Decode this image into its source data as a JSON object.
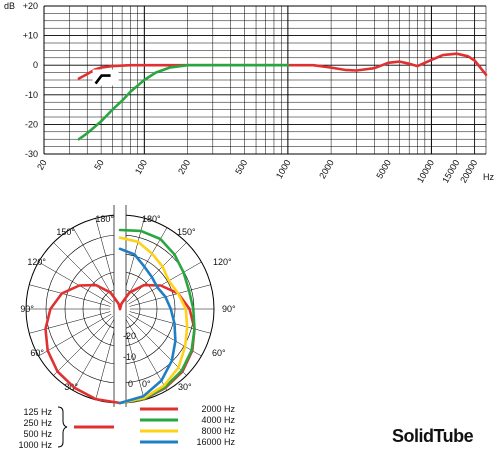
{
  "chart_data": [
    {
      "type": "line",
      "x_scale": "log",
      "xlim": [
        20,
        24000
      ],
      "ylim": [
        -30,
        20
      ],
      "x_unit": "Hz",
      "y_unit": "dB",
      "x_ticks": [
        20,
        50,
        100,
        200,
        500,
        1000,
        2000,
        5000,
        10000,
        15000,
        20000
      ],
      "x_tick_labels": [
        "20",
        "50",
        "100",
        "200",
        "500",
        "1000",
        "2000",
        "5000",
        "10000",
        "15000",
        "20000"
      ],
      "y_ticks": [
        20,
        10,
        0,
        -10,
        -20,
        -30
      ],
      "y_tick_labels": [
        "+20",
        "+10",
        "0",
        "-10",
        "-20",
        "-30"
      ],
      "grid": true,
      "series": [
        {
          "color": "#e03030",
          "x": [
            35,
            40,
            45,
            50,
            60,
            80,
            100,
            200,
            500,
            1000,
            1500,
            2000,
            2500,
            3000,
            4000,
            5000,
            6000,
            7000,
            8000,
            10000,
            12000,
            15000,
            18000,
            20000,
            24000
          ],
          "y": [
            -4.5,
            -3,
            -1.5,
            -0.8,
            -0.3,
            0,
            0,
            0,
            0,
            0,
            0,
            -0.8,
            -1.6,
            -1.8,
            -1,
            0.8,
            1.2,
            0.5,
            -0.3,
            1.8,
            3.4,
            3.9,
            3,
            1.6,
            -3.2
          ]
        },
        {
          "color": "#2aa640",
          "x": [
            35,
            40,
            50,
            60,
            70,
            80,
            100,
            120,
            150,
            200,
            500,
            1000
          ],
          "y": [
            -25,
            -23,
            -19,
            -15,
            -12,
            -9,
            -5,
            -2.5,
            -0.8,
            0,
            0,
            0
          ]
        }
      ],
      "low_cut_symbol": true
    },
    {
      "type": "polar",
      "angle_labels": [
        "180°",
        "150°",
        "120°",
        "90°",
        "60°",
        "30°",
        "0°"
      ],
      "radial_labels": [
        "-20",
        "-10",
        "0"
      ],
      "radial_range_db": [
        -25,
        0
      ],
      "left_half": [
        {
          "name": "125 Hz / 250 Hz / 500 Hz / 1000 Hz",
          "color": "#e03030",
          "angles": [
            0,
            15,
            30,
            45,
            60,
            75,
            90,
            105,
            120,
            135,
            150,
            165,
            180
          ],
          "levels_db": [
            0,
            -0.2,
            -0.8,
            -1.5,
            -2.8,
            -4.5,
            -6.5,
            -9,
            -12.5,
            -16,
            -20,
            -23.5,
            -25
          ]
        }
      ],
      "right_half": [
        {
          "name": "2000 Hz",
          "color": "#e03030",
          "angles": [
            0,
            15,
            30,
            45,
            60,
            75,
            90,
            105,
            120,
            135,
            150,
            165,
            180
          ],
          "levels_db": [
            0,
            -0.2,
            -0.8,
            -1.5,
            -2.8,
            -4.5,
            -6.5,
            -9,
            -12.5,
            -16,
            -20,
            -23.5,
            -25
          ]
        },
        {
          "name": "4000 Hz",
          "color": "#2aa640",
          "angles": [
            0,
            15,
            30,
            45,
            60,
            75,
            90,
            105,
            120,
            135,
            150,
            165,
            180
          ],
          "levels_db": [
            0,
            -0.3,
            -1,
            -1.8,
            -3,
            -4.5,
            -5.5,
            -6,
            -5.5,
            -4.5,
            -3.5,
            -3.5,
            -4
          ]
        },
        {
          "name": "8000 Hz",
          "color": "#ffd21a",
          "angles": [
            0,
            15,
            30,
            45,
            60,
            75,
            90,
            105,
            120,
            135,
            150,
            165,
            180
          ],
          "levels_db": [
            0,
            -0.5,
            -1.5,
            -3,
            -5,
            -6.5,
            -7.5,
            -9,
            -10,
            -9,
            -8,
            -6.5,
            -6
          ]
        },
        {
          "name": "16000 Hz",
          "color": "#1f7fc4",
          "angles": [
            0,
            15,
            30,
            45,
            60,
            75,
            90,
            105,
            120,
            135,
            150,
            165,
            180
          ],
          "levels_db": [
            0,
            -1,
            -3,
            -5.5,
            -8,
            -10,
            -11.5,
            -12.5,
            -13.5,
            -13,
            -12,
            -10,
            -9
          ]
        }
      ]
    }
  ],
  "legend": {
    "group_labels": [
      "125 Hz",
      "250 Hz",
      "500 Hz",
      "1000 Hz"
    ],
    "group_color": "#e03030",
    "items": [
      {
        "label": "2000 Hz",
        "color": "#e03030"
      },
      {
        "label": "4000 Hz",
        "color": "#2aa640"
      },
      {
        "label": "8000 Hz",
        "color": "#ffd21a"
      },
      {
        "label": "16000 Hz",
        "color": "#1f7fc4"
      }
    ]
  },
  "freq_axis": {
    "y_unit_label": "dB",
    "x_unit_label": "Hz"
  },
  "brand": "SolidTube"
}
